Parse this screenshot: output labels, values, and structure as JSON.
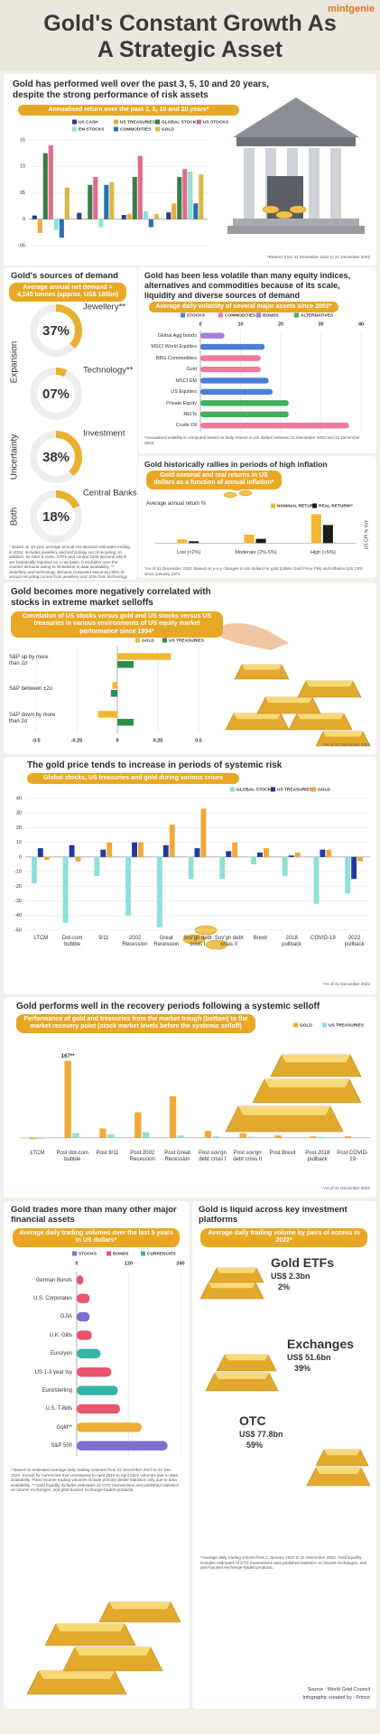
{
  "header": {
    "title": "Gold's Constant Growth As A Strategic Asset",
    "brand": "mintgenie"
  },
  "chart_data": [
    {
      "type": "bar",
      "title": "Gold has performed well over the past 3, 5, 10 and 20 years, despite the strong performance of risk assets",
      "subtitle": "Annualised return over the past 3, 5, 10 and 20 years*",
      "categories": [
        null,
        null,
        null,
        null
      ],
      "series": [
        {
          "name": "US CASH",
          "color": "#2b3a8f",
          "values": [
            0.7,
            1.2,
            0.8,
            1.3
          ]
        },
        {
          "name": "US TREASURIES",
          "color": "#f2a93b",
          "values": [
            -2.6,
            0.1,
            1.0,
            3.0
          ]
        },
        {
          "name": "GLOBAL STOCKS",
          "color": "#3c7a4a",
          "values": [
            12.5,
            6.5,
            8.0,
            8.0
          ]
        },
        {
          "name": "US STOCKS",
          "color": "#e06b8b",
          "values": [
            14.0,
            8.0,
            12.0,
            9.5
          ]
        },
        {
          "name": "EM STOCKS",
          "color": "#8ee0d8",
          "values": [
            -2.0,
            -1.5,
            1.5,
            9.0
          ]
        },
        {
          "name": "COMMODITIES",
          "color": "#2a6fb5",
          "values": [
            -3.5,
            6.5,
            -1.5,
            3.0
          ]
        },
        {
          "name": "GOLD",
          "color": "#d9b84a",
          "values": [
            6.0,
            7.0,
            1.0,
            8.5
          ]
        }
      ],
      "ylim": [
        -5,
        15
      ],
      "yticks": [
        {
          "value": -5,
          "label": "-05"
        },
        0,
        {
          "value": 5,
          "label": "05"
        },
        10,
        15
      ],
      "note": "*Returns from 31 December 2022 to 31 December 2002"
    },
    {
      "type": "donut",
      "title": "Gold's sources of demand",
      "subtitle": "Average annual net demand = 4,140 tonnes (approx. US$ 185bn)",
      "categories": [
        "Jewellery**",
        "Technology**",
        "Investment",
        "Central Banks"
      ],
      "values": [
        37,
        7,
        38,
        18
      ],
      "value_labels": [
        "37%",
        "07%",
        "38%",
        "18%"
      ],
      "color": "#e8b030",
      "group_labels": [
        "Expansion",
        "Uncertainty",
        "Both"
      ],
      "note": "* Based on 10-year average annual net demand estimates ending in 2022. Includes jewellery and technology net of recycling. In addition, for bars & coins, ETFs and central bank demand which are historically reported on a net basis. It excludes over-the-counter demand owing to limitations in data availability. ** Jewellery and technology demand computed assuming 90% of annual recycling comes from jewellery and 10% from technology."
    },
    {
      "type": "hbar",
      "title": "Gold has been less volatile than many equity indices, alternatives and commodities because of its scale, liquidity and diverse sources of demand",
      "subtitle": "Average daily volatility of several major assets since 2002*",
      "legend": [
        {
          "name": "STOCKS",
          "color": "#4a7fd6"
        },
        {
          "name": "COMMODITIES",
          "color": "#f07a9a"
        },
        {
          "name": "BONDS",
          "color": "#a77fd6"
        },
        {
          "name": "ALTERNATIVES",
          "color": "#3fae5e"
        }
      ],
      "categories": [
        "Global Agg bonds",
        "MSCI World Equities",
        "BBG Commodities",
        "Gold",
        "MSCI EM",
        "US Equities",
        "Private Equity",
        "REITs",
        "Crude Oil"
      ],
      "values": [
        6,
        16,
        15,
        15,
        17,
        18,
        22,
        22,
        37
      ],
      "colors": [
        "#a77fd6",
        "#4a7fd6",
        "#f07a9a",
        "#f07a9a",
        "#4a7fd6",
        "#4a7fd6",
        "#3fae5e",
        "#3fae5e",
        "#f07a9a"
      ],
      "xlim": [
        0,
        40
      ],
      "xticks": [
        0,
        10,
        20,
        30,
        40
      ],
      "note": "*Annualised volatility is computed based on daily returns in US dollars between 31 December 2002 and 31 December 2022."
    },
    {
      "type": "bar",
      "title": "Gold historically rallies in periods of high inflation",
      "subtitle": "Gold nominal and real returns in US dollars as a function of annual inflation*",
      "ylabel": "Average annual return %",
      "y2label": "US CPI % YoY",
      "categories": [
        "Low (<2%)",
        "Moderate (2%-5%)",
        "High (>5%)"
      ],
      "series": [
        {
          "name": "NOMINAL RETURN",
          "color": "#f2b632",
          "values": [
            3,
            7,
            24
          ]
        },
        {
          "name": "REAL RETURN**",
          "color": "#1a1a1a",
          "values": [
            1.5,
            3.5,
            15
          ]
        }
      ],
      "ylim": [
        -5,
        25
      ],
      "note": "*As of 31 December 2022. Based on y-o-y changes in US dollars for gold (LBMA Gold Price PM) and inflation (US CPI) since January 1971"
    },
    {
      "type": "hbar",
      "title": "Gold becomes more negatively correlated with stocks in extreme market selloffs",
      "subtitle": "Correlation of US stocks versus gold and US stocks versus US treasuries in various environments of US equity market performance since 1994*",
      "categories": [
        "S&P up by more than 2σ",
        "S&P between ±2σ",
        "S&P down by more than 2σ"
      ],
      "series": [
        {
          "name": "GOLD",
          "color": "#f2b632",
          "values": [
            0.33,
            -0.03,
            -0.12
          ]
        },
        {
          "name": "US TREASURIES",
          "color": "#2e8b4a",
          "values": [
            0.1,
            -0.04,
            0.1
          ]
        }
      ],
      "xlim": [
        -0.5,
        0.5
      ],
      "xticks": [
        -0.5,
        -0.25,
        0,
        0.25,
        0.5
      ],
      "note": "*As of 31 December 2022"
    },
    {
      "type": "bar",
      "title": "The gold price tends to increase in periods of systemic risk",
      "subtitle": "Global stocks, US treasuries and gold during various crises",
      "categories": [
        "LTCM",
        "Dot-com bubble",
        "9/11",
        "2002 Recession",
        "Great Recession",
        "Sov'gn debt crisis I",
        "Sov'gn debt crisis II",
        "Brexit",
        "2018 pullback",
        "COVID-19",
        "2022 pullback"
      ],
      "series": [
        {
          "name": "GLOBAL STOCKS",
          "color": "#8ee0d8",
          "values": [
            -18,
            -45,
            -13,
            -40,
            -48,
            -15,
            -15,
            -5,
            -13,
            -32,
            -25
          ]
        },
        {
          "name": "US TREASURIES",
          "color": "#1f3a9e",
          "values": [
            6,
            8,
            5,
            10,
            8,
            6,
            4,
            3,
            1,
            5,
            -15
          ]
        },
        {
          "name": "GOLD",
          "color": "#f2a93b",
          "values": [
            -2,
            -3,
            10,
            10,
            22,
            33,
            10,
            6,
            3,
            5,
            -3
          ]
        }
      ],
      "ylim": [
        -50,
        40
      ],
      "yticks": [
        40,
        30,
        20,
        10,
        0,
        -10,
        -20,
        -30,
        -40,
        -50
      ],
      "note": "*As of 31 December 2022"
    },
    {
      "type": "bar",
      "title": "Gold performs well in the recovery periods following a systemic selloff",
      "subtitle": "Performance of gold and treasuries from the market trough (bottom) to the market recovery point (stock market levels before the systemic selloff)",
      "categories": [
        "LTCM",
        "Post dot-com bubble",
        "Post 9/11",
        "Post 2002 Recession",
        "Post Great Recession",
        "Post sov'gn debt crisis I",
        "Post sov'gn debt crisis II",
        "Post Brexit",
        "Post 2018 pullback",
        "Post COVID-19"
      ],
      "series": [
        {
          "name": "GOLD",
          "color": "#f2a93b",
          "values": [
            -3,
            167,
            20,
            55,
            90,
            15,
            10,
            5,
            3,
            3
          ],
          "value_labels": [
            null,
            "167**",
            null,
            null,
            null,
            null,
            null,
            null,
            null,
            null
          ]
        },
        {
          "name": "US TREASURIES",
          "color": "#8ee0d8",
          "values": [
            -2,
            10,
            8,
            12,
            5,
            3,
            2,
            1,
            2,
            1
          ]
        }
      ],
      "ylim": [
        -20,
        180
      ],
      "note": "*As of 31 December 2022"
    },
    {
      "type": "hbar",
      "title": "Gold trades more than many other major financial assets",
      "subtitle": "Average daily trading volumes over the last 5 years in US dollars*",
      "legend": [
        {
          "name": "STOCKS",
          "color": "#7b6fd0"
        },
        {
          "name": "BONDS",
          "color": "#e8556d"
        },
        {
          "name": "CURRENCIES",
          "color": "#35b5a8"
        }
      ],
      "categories": [
        "German Bunds",
        "U.S. Corporates",
        "DJIA",
        "U.K. Gilts",
        "Euro/yen",
        "US 1-3 year tsy",
        "Euro/sterling",
        "U.S. T-Bills",
        "Gold**",
        "S&P 500"
      ],
      "values": [
        15,
        30,
        30,
        35,
        55,
        80,
        95,
        100,
        150,
        210
      ],
      "colors": [
        "#e8556d",
        "#e8556d",
        "#7b6fd0",
        "#e8556d",
        "#35b5a8",
        "#e8556d",
        "#35b5a8",
        "#e8556d",
        "#e8b030",
        "#7b6fd0"
      ],
      "xlim": [
        0,
        240
      ],
      "xticks": [
        0,
        120,
        240
      ],
      "note": "* Based on estimated average daily trading volumes from 31 December 2017 to 31 Dec 2022, except for currencies that correspond to April 2016 to April 2022 volumes due to data availability. Fixed income trading volumes include primary dealer statistics only due to data availability. ** Gold liquidity includes estimates on OTC transactions and published statistics on futures exchanges, and gold-backed exchange-traded products."
    }
  ],
  "liquidity": {
    "title": "Gold is liquid across key investment platforms",
    "subtitle": "Average daily trading volume by pairs of access in 2022*",
    "platforms": [
      {
        "name": "Gold ETFs",
        "volume": "US$ 2.3bn",
        "share": "2%"
      },
      {
        "name": "Exchanges",
        "volume": "US$ 51.6bn",
        "share": "39%"
      },
      {
        "name": "OTC",
        "volume": "US$ 77.8bn",
        "share": "59%"
      }
    ],
    "note": "*Average daily trading volume from 1 January 2022 to 31 December 2022. Gold liquidity includes estimates of OTC transactions and published statistics on futures exchanges, and gold-backed exchange-traded products."
  },
  "footer": {
    "source": "Source : World Gold Council",
    "credit": "Infographic created by : Prince"
  }
}
